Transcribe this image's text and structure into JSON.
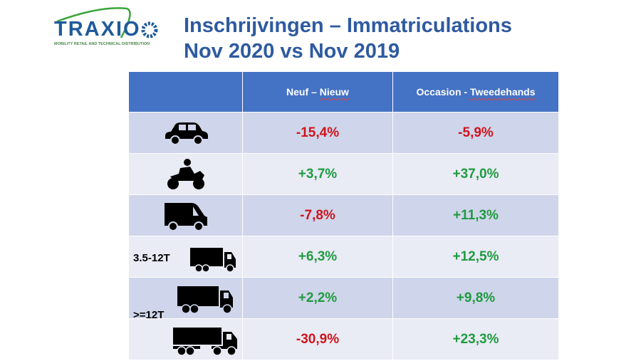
{
  "logo": {
    "text": "TRAXIO",
    "tagline": "MOBILITY RETAIL AND TECHNICAL DISTRIBUTION"
  },
  "title": {
    "line1": "Inschrijvingen – Immatriculations",
    "line2": "Nov 2020 vs Nov 2019"
  },
  "table": {
    "headers": {
      "new_a": "Neuf – ",
      "new_b": "Nieuw",
      "used_a": "Occasion - ",
      "used_b": "Tweedehands"
    },
    "weight_labels": {
      "light_truck": "3.5-12T",
      "heavy_truck": ">=12T"
    },
    "rows": [
      {
        "icon": "car-icon",
        "new": "-15,4%",
        "used": "-5,9%"
      },
      {
        "icon": "motorcycle-icon",
        "new": "+3,7%",
        "used": "+37,0%"
      },
      {
        "icon": "van-icon",
        "new": "-7,8%",
        "used": "+11,3%"
      },
      {
        "icon": "light-truck-icon",
        "new": "+6,3%",
        "used": "+12,5%"
      },
      {
        "icon": "heavy-truck-icon",
        "new": "+2,2%",
        "used": "+9,8%"
      },
      {
        "icon": "tractor-trailer-icon",
        "new": "-30,9%",
        "used": "+23,3%"
      }
    ]
  },
  "colors": {
    "header": "#4472c4",
    "negative": "#d0141c",
    "positive": "#1f9b3f",
    "title": "#2e5aa0"
  }
}
